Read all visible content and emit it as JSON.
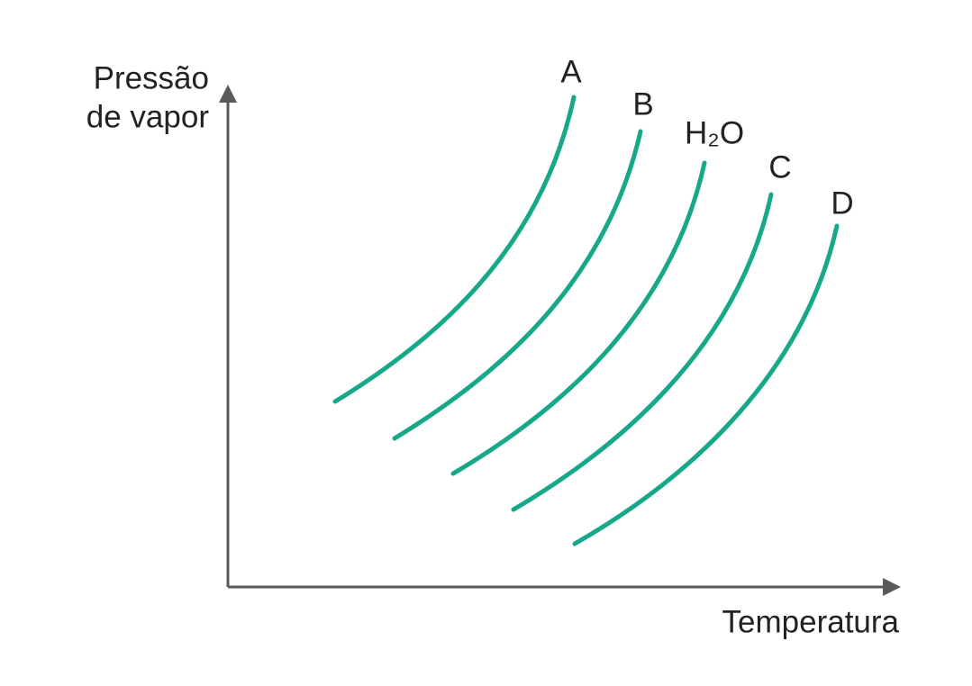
{
  "y_axis_label": [
    "Pressão",
    "de vapor"
  ],
  "x_axis_label": "Temperatura",
  "curves": [
    {
      "label": "A"
    },
    {
      "label": "B"
    },
    {
      "label": "H₂O"
    },
    {
      "label": "C"
    },
    {
      "label": "D"
    }
  ]
}
